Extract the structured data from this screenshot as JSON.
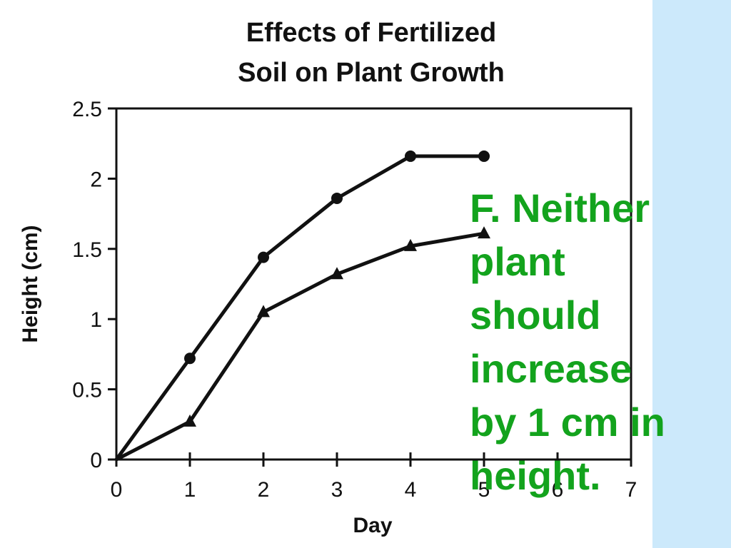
{
  "colors": {
    "side_band": "#cce9fb",
    "answer_text": "#13a31d",
    "ink": "#111111"
  },
  "chart_data": {
    "type": "line",
    "title_lines": [
      "Effects of Fertilized",
      "Soil on Plant Growth"
    ],
    "xlabel": "Day",
    "ylabel": "Height (cm)",
    "xlim": [
      0,
      7
    ],
    "ylim": [
      0,
      2.5
    ],
    "x_ticks": [
      "0",
      "1",
      "2",
      "3",
      "4",
      "5",
      "6",
      "7"
    ],
    "y_ticks": [
      "0",
      "0.5",
      "1",
      "1.5",
      "2",
      "2.5"
    ],
    "grid": false,
    "series": [
      {
        "marker": "circle",
        "x": [
          0,
          1,
          2,
          3,
          4,
          5
        ],
        "y": [
          0,
          0.72,
          1.44,
          1.86,
          2.16,
          2.16
        ]
      },
      {
        "marker": "triangle",
        "x": [
          0,
          1,
          2,
          3,
          4,
          5
        ],
        "y": [
          0,
          0.27,
          1.05,
          1.32,
          1.52,
          1.61
        ]
      }
    ]
  },
  "answer": {
    "lines": [
      "F.  Neither",
      "plant",
      "should",
      "increase",
      "by 1 cm in",
      "height."
    ]
  }
}
